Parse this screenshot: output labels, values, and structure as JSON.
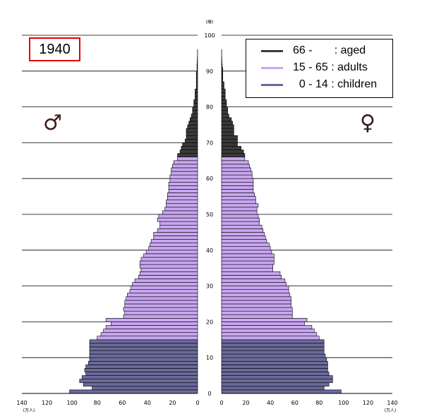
{
  "year_label": "1940",
  "male_symbol": "♂",
  "female_symbol": "♀",
  "colors": {
    "aged": "#3a3a3a",
    "adults": "#c8a6f0",
    "children": "#6a6a9a",
    "border": "#000000",
    "year_box": "#e00000"
  },
  "legend": [
    {
      "key": "aged",
      "text": "66 -       : aged"
    },
    {
      "key": "adults",
      "text": "15 - 65 : adults"
    },
    {
      "key": "children",
      "text": "  0 - 14 : children"
    }
  ],
  "chart_data": {
    "type": "bar",
    "orientation": "population-pyramid",
    "y_unit": "(歳)",
    "x_unit": "(万人)",
    "ylim": [
      0,
      100
    ],
    "y_ticks": [
      0,
      10,
      20,
      30,
      40,
      50,
      60,
      70,
      80,
      90,
      100
    ],
    "xlim": [
      0,
      140
    ],
    "male_x_ticks": [
      140,
      120,
      100,
      80,
      60,
      40,
      20,
      0
    ],
    "female_x_ticks": [
      0,
      20,
      40,
      60,
      80,
      100,
      120,
      140
    ],
    "groups": {
      "children": [
        0,
        14
      ],
      "adults": [
        15,
        65
      ],
      "aged": [
        66,
        100
      ]
    },
    "series": [
      {
        "name": "male",
        "side": "left",
        "values": [
          102,
          84,
          91,
          94,
          92,
          89,
          90,
          89,
          87,
          86,
          86,
          86,
          86,
          86,
          86,
          80,
          77,
          75,
          73,
          69,
          73,
          59,
          58,
          59,
          58,
          58,
          57,
          56,
          54,
          53,
          52,
          50,
          47,
          46,
          45,
          46,
          46,
          45,
          43,
          41,
          39,
          38,
          37,
          35,
          35,
          32,
          30,
          30,
          32,
          31,
          28,
          26,
          25,
          25,
          24,
          24,
          23,
          23,
          23,
          22,
          22,
          21,
          21,
          20,
          19,
          16,
          16,
          14,
          13,
          12,
          10,
          9,
          9,
          9,
          8,
          7,
          6,
          5,
          4,
          4,
          3,
          3,
          2,
          2,
          2,
          1,
          1,
          1,
          1,
          1,
          0.5,
          0.5,
          0.3,
          0.2,
          0.1,
          0.1,
          0,
          0,
          0,
          0
        ]
      },
      {
        "name": "female",
        "side": "right",
        "values": [
          98,
          84,
          88,
          91,
          91,
          88,
          87,
          87,
          87,
          86,
          85,
          84,
          84,
          84,
          84,
          80,
          78,
          76,
          74,
          68,
          70,
          58,
          58,
          58,
          57,
          57,
          57,
          56,
          55,
          55,
          53,
          52,
          49,
          48,
          42,
          42,
          43,
          43,
          43,
          41,
          40,
          39,
          37,
          36,
          35,
          34,
          33,
          31,
          31,
          30,
          29,
          29,
          30,
          28,
          28,
          27,
          26,
          26,
          26,
          26,
          25,
          25,
          24,
          23,
          22,
          19,
          19,
          18,
          16,
          13,
          13,
          13,
          10,
          10,
          10,
          9,
          8,
          6,
          5,
          5,
          4,
          4,
          3,
          3,
          3,
          2,
          2,
          1,
          1,
          1,
          1,
          0.5,
          0.3,
          0.2,
          0.1,
          0.1,
          0,
          0,
          0,
          0
        ]
      }
    ],
    "grid": true
  }
}
